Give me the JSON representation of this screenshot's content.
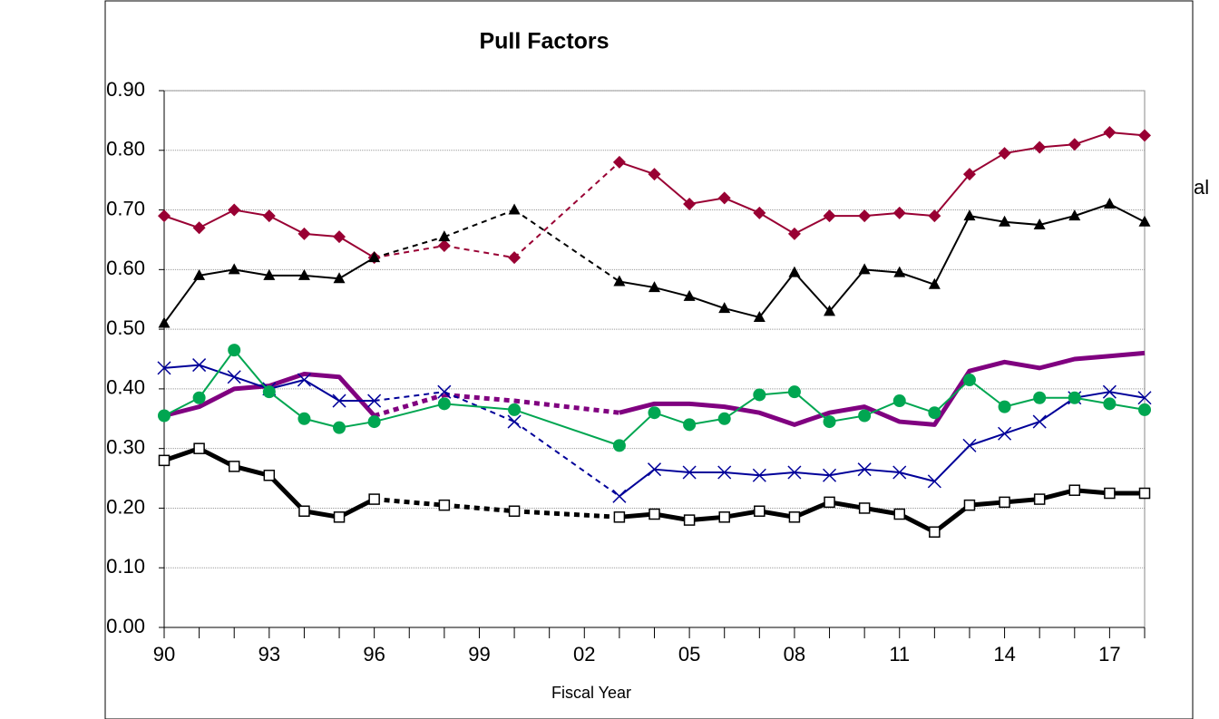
{
  "chart_data": {
    "type": "line",
    "title": "Pull Factors",
    "x_label": "Fiscal Year",
    "annotation": "al",
    "categories": [
      "90",
      null,
      null,
      "93",
      null,
      null,
      "96",
      null,
      null,
      "99",
      null,
      null,
      "02",
      null,
      null,
      "05",
      null,
      null,
      "08",
      null,
      null,
      "11",
      null,
      null,
      "14",
      null,
      null,
      "17",
      null
    ],
    "ylim": [
      0,
      0.9
    ],
    "yticks": [
      {
        "value": 0,
        "label": "0.00"
      },
      {
        "value": 0.1,
        "label": "0.10"
      },
      {
        "value": 0.2,
        "label": "0.20"
      },
      {
        "value": 0.3,
        "label": "0.30"
      },
      {
        "value": 0.4,
        "label": "0.40"
      },
      {
        "value": 0.5,
        "label": "0.50"
      },
      {
        "value": 0.6,
        "label": "0.60"
      },
      {
        "value": 0.7,
        "label": "0.70"
      },
      {
        "value": 0.8,
        "label": "0.80"
      },
      {
        "value": 0.9,
        "label": "0.90"
      }
    ],
    "grid": true,
    "series": [
      {
        "color": "#990033",
        "marker": "diamond",
        "values": [
          0.69,
          0.67,
          0.7,
          0.69,
          0.66,
          0.655,
          0.62,
          null,
          0.64,
          null,
          0.62,
          null,
          null,
          0.78,
          0.76,
          0.71,
          0.72,
          0.695,
          0.66,
          0.69,
          0.69,
          0.695,
          0.69,
          0.76,
          0.795,
          0.805,
          0.81,
          0.83,
          0.825
        ]
      },
      {
        "color": "#000000",
        "marker": "triangle",
        "values": [
          0.51,
          0.59,
          0.6,
          0.59,
          0.59,
          0.585,
          0.62,
          null,
          0.655,
          null,
          0.7,
          null,
          null,
          0.58,
          0.57,
          0.555,
          0.535,
          0.52,
          0.595,
          0.53,
          0.6,
          0.595,
          0.575,
          0.69,
          0.68,
          0.675,
          0.69,
          0.71,
          0.68
        ]
      },
      {
        "color": "#800080",
        "marker": "none",
        "values": [
          0.355,
          0.37,
          0.4,
          0.405,
          0.425,
          0.42,
          0.355,
          null,
          0.39,
          null,
          0.38,
          null,
          null,
          0.36,
          0.375,
          0.375,
          0.37,
          0.36,
          0.34,
          0.36,
          0.37,
          0.345,
          0.34,
          0.43,
          0.445,
          0.435,
          0.45,
          0.455,
          0.46
        ]
      },
      {
        "color": "#000099",
        "marker": "x",
        "values": [
          0.435,
          0.44,
          0.42,
          0.4,
          0.415,
          0.38,
          0.38,
          null,
          0.395,
          null,
          0.345,
          null,
          null,
          0.22,
          0.265,
          0.26,
          0.26,
          0.255,
          0.26,
          0.255,
          0.265,
          0.26,
          0.245,
          0.305,
          0.325,
          0.345,
          0.385,
          0.395,
          0.385
        ]
      },
      {
        "color": "#00a651",
        "marker": "circle",
        "values": [
          0.355,
          0.385,
          0.465,
          0.395,
          0.35,
          0.335,
          0.345,
          null,
          0.375,
          null,
          0.365,
          null,
          null,
          0.305,
          0.36,
          0.34,
          0.35,
          0.39,
          0.395,
          0.345,
          0.355,
          0.38,
          0.36,
          0.415,
          0.37,
          0.385,
          0.385,
          0.375,
          0.365
        ]
      },
      {
        "color": "#000000",
        "marker": "square",
        "values": [
          0.28,
          0.3,
          0.27,
          0.255,
          0.195,
          0.185,
          0.215,
          null,
          0.205,
          null,
          0.195,
          null,
          null,
          0.185,
          0.19,
          0.18,
          0.185,
          0.195,
          0.185,
          0.21,
          0.2,
          0.19,
          0.16,
          0.205,
          0.21,
          0.215,
          0.23,
          0.225,
          0.225
        ]
      }
    ]
  }
}
